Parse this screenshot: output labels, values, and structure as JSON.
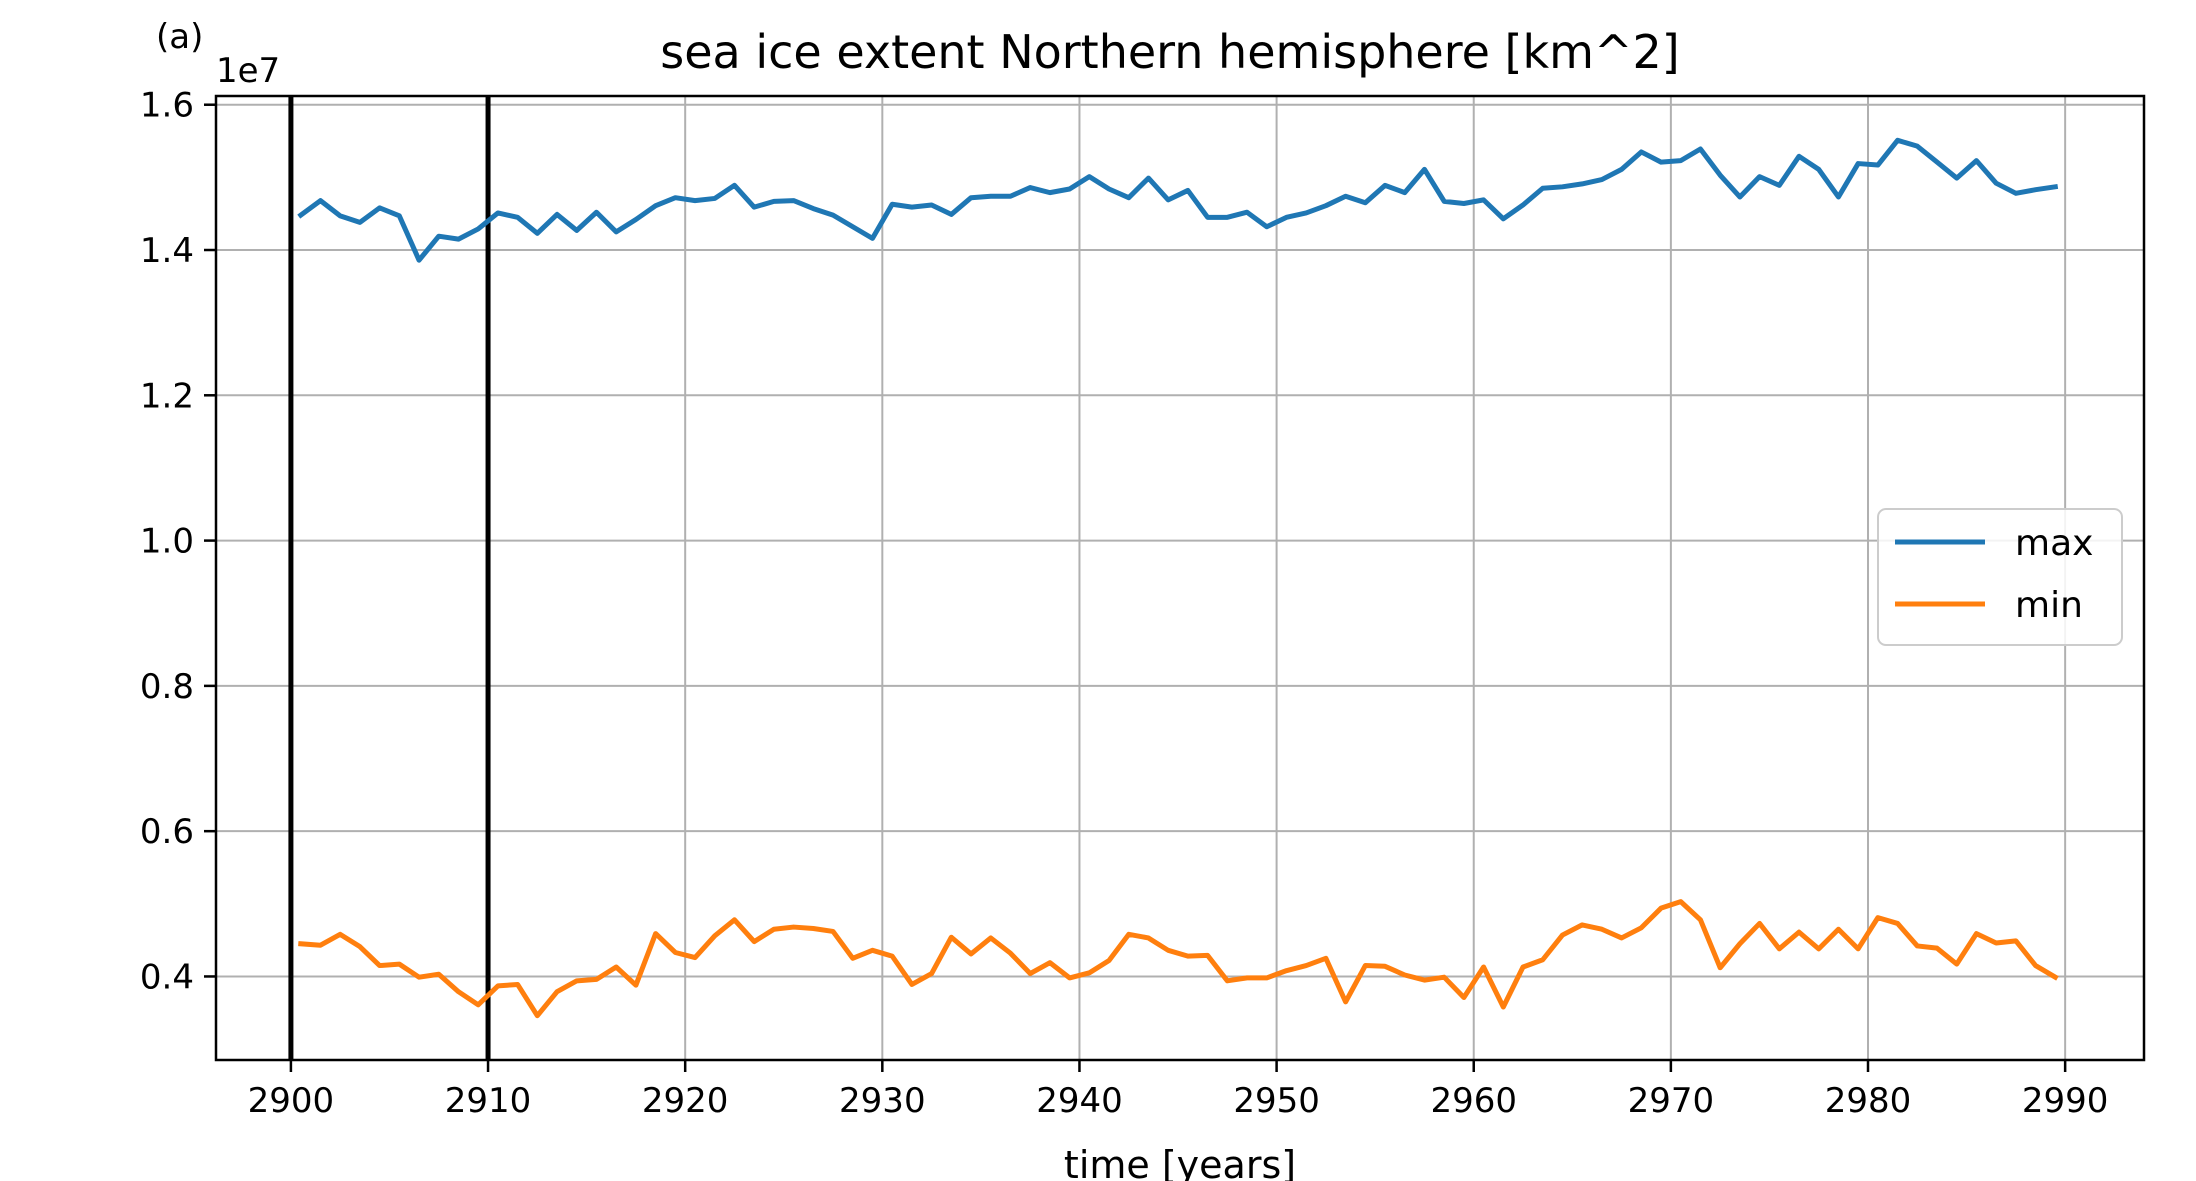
{
  "chart_data": {
    "type": "line",
    "panel_label": "(a)",
    "title": "sea ice extent Northern hemisphere [km^2]",
    "xlabel": "time [years]",
    "ylabel": "",
    "y_offset_label": "1e7",
    "xlim": [
      2896.2,
      2994.0
    ],
    "ylim": [
      0.285,
      1.612
    ],
    "y_units_scale": 10000000,
    "xticks": [
      2900,
      2910,
      2920,
      2930,
      2940,
      2950,
      2960,
      2970,
      2980,
      2990
    ],
    "xtick_labels": [
      "2900",
      "2910",
      "2920",
      "2930",
      "2940",
      "2950",
      "2960",
      "2970",
      "2980",
      "2990"
    ],
    "yticks": [
      0.4,
      0.6,
      0.8,
      1.0,
      1.2,
      1.4,
      1.6
    ],
    "ytick_labels": [
      "0.4",
      "0.6",
      "0.8",
      "1.0",
      "1.2",
      "1.4",
      "1.6"
    ],
    "grid": true,
    "vertical_lines": [
      2900,
      2910
    ],
    "vertical_line_color": "#000000",
    "legend_position": "center-right",
    "x": [
      2900.5,
      2901.5,
      2902.5,
      2903.5,
      2904.5,
      2905.5,
      2906.5,
      2907.5,
      2908.5,
      2909.5,
      2910.5,
      2911.5,
      2912.5,
      2913.5,
      2914.5,
      2915.5,
      2916.5,
      2917.5,
      2918.5,
      2919.5,
      2920.5,
      2921.5,
      2922.5,
      2923.5,
      2924.5,
      2925.5,
      2926.5,
      2927.5,
      2928.5,
      2929.5,
      2930.5,
      2931.5,
      2932.5,
      2933.5,
      2934.5,
      2935.5,
      2936.5,
      2937.5,
      2938.5,
      2939.5,
      2940.5,
      2941.5,
      2942.5,
      2943.5,
      2944.5,
      2945.5,
      2946.5,
      2947.5,
      2948.5,
      2949.5,
      2950.5,
      2951.5,
      2952.5,
      2953.5,
      2954.5,
      2955.5,
      2956.5,
      2957.5,
      2958.5,
      2959.5,
      2960.5,
      2961.5,
      2962.5,
      2963.5,
      2964.5,
      2965.5,
      2966.5,
      2967.5,
      2968.5,
      2969.5,
      2970.5,
      2971.5,
      2972.5,
      2973.5,
      2974.5,
      2975.5,
      2976.5,
      2977.5,
      2978.5,
      2979.5,
      2980.5,
      2981.5,
      2982.5,
      2983.5,
      2984.5,
      2985.5,
      2986.5,
      2987.5,
      2988.5,
      2989.5
    ],
    "series": [
      {
        "name": "max",
        "color": "#1f77b4",
        "values": [
          1.448,
          1.468,
          1.447,
          1.438,
          1.458,
          1.447,
          1.386,
          1.419,
          1.415,
          1.429,
          1.451,
          1.445,
          1.423,
          1.449,
          1.427,
          1.452,
          1.425,
          1.442,
          1.461,
          1.472,
          1.468,
          1.471,
          1.489,
          1.459,
          1.467,
          1.468,
          1.457,
          1.448,
          1.432,
          1.416,
          1.463,
          1.459,
          1.462,
          1.449,
          1.472,
          1.474,
          1.474,
          1.486,
          1.479,
          1.484,
          1.501,
          1.484,
          1.472,
          1.499,
          1.469,
          1.482,
          1.445,
          1.445,
          1.452,
          1.432,
          1.445,
          1.451,
          1.461,
          1.474,
          1.465,
          1.489,
          1.479,
          1.511,
          1.467,
          1.464,
          1.469,
          1.443,
          1.462,
          1.485,
          1.487,
          1.491,
          1.497,
          1.511,
          1.535,
          1.521,
          1.523,
          1.539,
          1.503,
          1.473,
          1.501,
          1.489,
          1.529,
          1.511,
          1.473,
          1.519,
          1.517,
          1.551,
          1.543,
          1.521,
          1.499,
          1.523,
          1.492,
          1.478,
          1.483,
          1.487
        ]
      },
      {
        "name": "min",
        "color": "#ff7f0e",
        "values": [
          0.445,
          0.443,
          0.458,
          0.441,
          0.415,
          0.417,
          0.399,
          0.403,
          0.379,
          0.361,
          0.387,
          0.389,
          0.346,
          0.379,
          0.394,
          0.396,
          0.413,
          0.388,
          0.459,
          0.433,
          0.426,
          0.456,
          0.478,
          0.448,
          0.465,
          0.468,
          0.466,
          0.462,
          0.425,
          0.436,
          0.428,
          0.389,
          0.404,
          0.454,
          0.431,
          0.453,
          0.432,
          0.404,
          0.419,
          0.398,
          0.405,
          0.422,
          0.458,
          0.453,
          0.436,
          0.428,
          0.429,
          0.394,
          0.398,
          0.398,
          0.408,
          0.415,
          0.425,
          0.365,
          0.415,
          0.414,
          0.402,
          0.395,
          0.399,
          0.371,
          0.413,
          0.358,
          0.413,
          0.423,
          0.457,
          0.471,
          0.465,
          0.453,
          0.467,
          0.494,
          0.503,
          0.478,
          0.412,
          0.445,
          0.473,
          0.438,
          0.461,
          0.438,
          0.465,
          0.438,
          0.481,
          0.473,
          0.442,
          0.439,
          0.417,
          0.459,
          0.446,
          0.449,
          0.415,
          0.399
        ]
      }
    ]
  }
}
